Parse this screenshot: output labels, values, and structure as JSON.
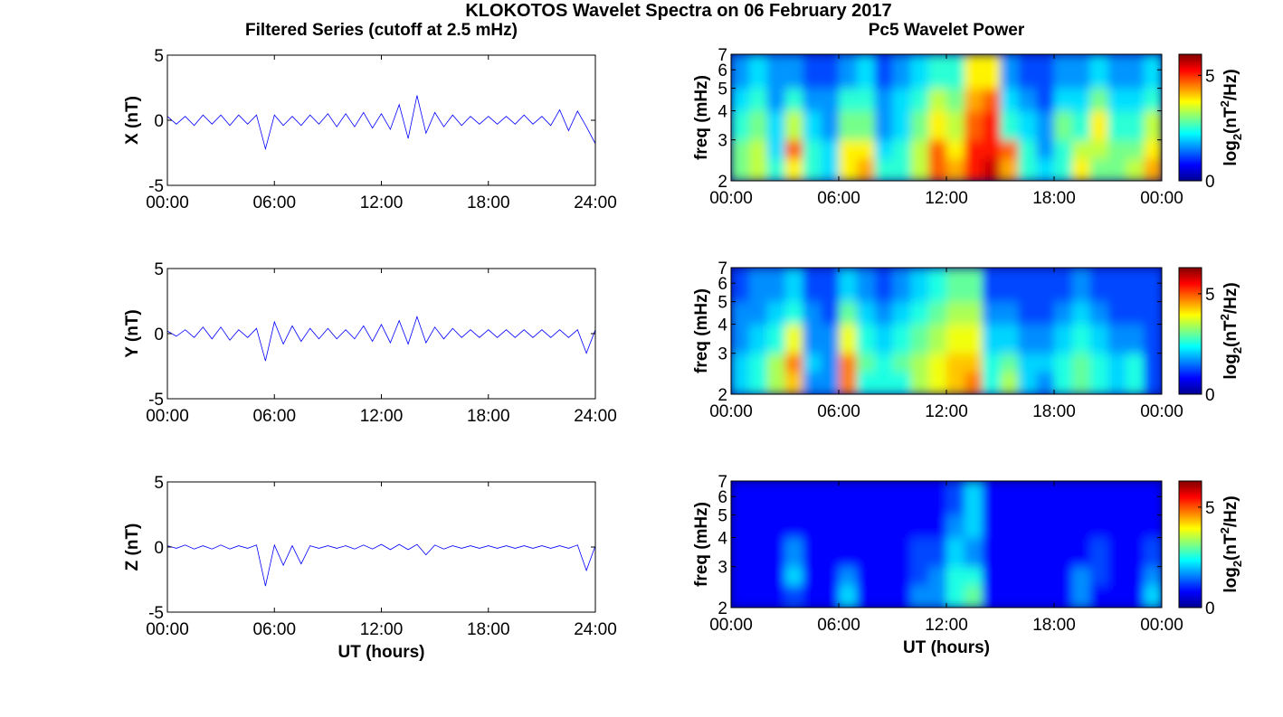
{
  "title": "KLOKOTOS Wavelet Spectra on 06 February 2017",
  "chart_data": [
    {
      "type": "line",
      "title": "Filtered Series (cutoff at 2.5 mHz)",
      "ylabel": "X (nT)",
      "color": "#0000ff",
      "xlim": [
        0,
        24
      ],
      "xticks": [
        {
          "value": 0,
          "label": "00:00"
        },
        {
          "value": 6,
          "label": "06:00"
        },
        {
          "value": 12,
          "label": "12:00"
        },
        {
          "value": 18,
          "label": "18:00"
        },
        {
          "value": 24,
          "label": "24:00"
        }
      ],
      "ylim": [
        -5,
        5
      ],
      "yticks": [
        -5,
        0,
        5
      ],
      "x": [
        0,
        0.5,
        1,
        1.5,
        2,
        2.5,
        3,
        3.5,
        4,
        4.5,
        5,
        5.5,
        6,
        6.5,
        7,
        7.5,
        8,
        8.5,
        9,
        9.5,
        10,
        10.5,
        11,
        11.5,
        12,
        12.5,
        13,
        13.5,
        14,
        14.5,
        15,
        15.5,
        16,
        16.5,
        17,
        17.5,
        18,
        18.5,
        19,
        19.5,
        20,
        20.5,
        21,
        21.5,
        22,
        22.5,
        23,
        23.5,
        24
      ],
      "values": [
        0.3,
        -0.3,
        0.3,
        -0.4,
        0.4,
        -0.3,
        0.4,
        -0.4,
        0.4,
        -0.3,
        0.4,
        -2.2,
        0.4,
        -0.4,
        0.3,
        -0.4,
        0.4,
        -0.3,
        0.5,
        -0.5,
        0.5,
        -0.5,
        0.6,
        -0.6,
        0.5,
        -0.7,
        1.2,
        -1.4,
        1.9,
        -1.0,
        0.6,
        -0.5,
        0.4,
        -0.4,
        0.3,
        -0.3,
        0.3,
        -0.3,
        0.3,
        -0.3,
        0.4,
        -0.3,
        0.3,
        -0.4,
        0.8,
        -0.8,
        0.7,
        -0.5,
        -1.8
      ]
    },
    {
      "type": "heatmap",
      "title": "Pc5 Wavelet Power",
      "ylabel": "freq (mHz)",
      "yscale": "log",
      "colormap": "jet",
      "xlim": [
        0,
        24
      ],
      "xticks": [
        {
          "value": 0,
          "label": "00:00"
        },
        {
          "value": 6,
          "label": "06:00"
        },
        {
          "value": 12,
          "label": "12:00"
        },
        {
          "value": 18,
          "label": "18:00"
        },
        {
          "value": 24,
          "label": "00:00"
        }
      ],
      "ylim": [
        2,
        7
      ],
      "yticks": [
        2,
        3,
        4,
        5,
        6,
        7
      ],
      "xbins": [
        0,
        1,
        2,
        3,
        4,
        5,
        6,
        7,
        8,
        9,
        10,
        11,
        12,
        13,
        14,
        15,
        16,
        17,
        18,
        19,
        20,
        21,
        22,
        23,
        24
      ],
      "ybins": [
        2,
        2.5,
        3,
        4,
        5,
        7
      ],
      "z": [
        [
          2.5,
          3,
          2,
          3.5,
          2,
          1.5,
          3.5,
          4,
          2,
          2,
          3,
          4.5,
          4,
          5,
          5.5,
          4,
          2,
          1.5,
          2,
          3.5,
          2.5,
          2.5,
          3,
          4
        ],
        [
          2.5,
          3,
          1.5,
          4.5,
          2,
          1.5,
          3.5,
          3.5,
          1.5,
          2,
          3,
          4.5,
          3.5,
          5,
          5,
          4.5,
          2,
          1,
          2,
          3,
          3,
          2.5,
          2.5,
          3.5
        ],
        [
          2,
          2.5,
          1.5,
          3,
          1.5,
          1,
          2.5,
          2.5,
          1,
          1.5,
          2.5,
          3.5,
          3,
          4.5,
          5,
          2,
          1.5,
          1,
          2.5,
          2,
          3.5,
          2,
          2,
          3
        ],
        [
          1.5,
          2,
          1,
          2,
          1,
          1,
          2,
          2,
          1,
          1.5,
          2,
          3,
          2.5,
          4,
          4.5,
          1.5,
          1,
          0.5,
          1.5,
          1.5,
          2.5,
          1.5,
          1.5,
          2
        ],
        [
          1,
          1.5,
          1,
          1,
          0.5,
          0.5,
          1,
          1.5,
          0.5,
          1,
          1.5,
          2,
          2,
          3.5,
          3.5,
          1,
          0.5,
          0.5,
          1,
          1,
          1.5,
          1,
          1,
          1.5
        ]
      ],
      "zlim": [
        0,
        6
      ],
      "zticks": [
        0,
        5
      ],
      "colorbar_label": [
        "log",
        "2",
        "(nT",
        "2",
        "/Hz)"
      ]
    },
    {
      "type": "line",
      "ylabel": "Y (nT)",
      "color": "#0000ff",
      "xlim": [
        0,
        24
      ],
      "xticks": [
        {
          "value": 0,
          "label": "00:00"
        },
        {
          "value": 6,
          "label": "06:00"
        },
        {
          "value": 12,
          "label": "12:00"
        },
        {
          "value": 18,
          "label": "18:00"
        },
        {
          "value": 24,
          "label": "24:00"
        }
      ],
      "ylim": [
        -5,
        5
      ],
      "yticks": [
        -5,
        0,
        5
      ],
      "x": [
        0,
        0.5,
        1,
        1.5,
        2,
        2.5,
        3,
        3.5,
        4,
        4.5,
        5,
        5.5,
        6,
        6.5,
        7,
        7.5,
        8,
        8.5,
        9,
        9.5,
        10,
        10.5,
        11,
        11.5,
        12,
        12.5,
        13,
        13.5,
        14,
        14.5,
        15,
        15.5,
        16,
        16.5,
        17,
        17.5,
        18,
        18.5,
        19,
        19.5,
        20,
        20.5,
        21,
        21.5,
        22,
        22.5,
        23,
        23.5,
        24
      ],
      "values": [
        0.2,
        -0.2,
        0.3,
        -0.3,
        0.5,
        -0.4,
        0.5,
        -0.5,
        0.3,
        -0.3,
        0.4,
        -2.1,
        0.9,
        -0.8,
        0.6,
        -0.6,
        0.4,
        -0.4,
        0.4,
        -0.4,
        0.3,
        -0.4,
        0.6,
        -0.6,
        0.7,
        -0.7,
        1.0,
        -0.8,
        1.3,
        -0.7,
        0.5,
        -0.4,
        0.4,
        -0.3,
        0.3,
        -0.3,
        0.3,
        -0.3,
        0.3,
        -0.3,
        0.3,
        -0.3,
        0.3,
        -0.3,
        0.3,
        -0.3,
        0.3,
        -1.5,
        0.3
      ]
    },
    {
      "type": "heatmap",
      "ylabel": "freq (mHz)",
      "yscale": "log",
      "colormap": "jet",
      "xlim": [
        0,
        24
      ],
      "xticks": [
        {
          "value": 0,
          "label": "00:00"
        },
        {
          "value": 6,
          "label": "06:00"
        },
        {
          "value": 12,
          "label": "12:00"
        },
        {
          "value": 18,
          "label": "18:00"
        },
        {
          "value": 24,
          "label": "00:00"
        }
      ],
      "ylim": [
        2,
        7
      ],
      "yticks": [
        2,
        3,
        4,
        5,
        6,
        7
      ],
      "xbins": [
        0,
        1,
        2,
        3,
        4,
        5,
        6,
        7,
        8,
        9,
        10,
        11,
        12,
        13,
        14,
        15,
        16,
        17,
        18,
        19,
        20,
        21,
        22,
        23,
        24
      ],
      "ybins": [
        2,
        2.5,
        3,
        4,
        5,
        7
      ],
      "z": [
        [
          1.5,
          2,
          3,
          4,
          1,
          1,
          4.5,
          2,
          2,
          2,
          3,
          3.5,
          4,
          4.5,
          2,
          3,
          1.5,
          1,
          2,
          2.5,
          2,
          1.5,
          2,
          0.5
        ],
        [
          1.5,
          2,
          3,
          4.5,
          1.5,
          1,
          4.5,
          2.5,
          2,
          2.5,
          3,
          3.5,
          4,
          4,
          2,
          2.5,
          1.5,
          1.5,
          2,
          2.5,
          2,
          1.5,
          2,
          0.5
        ],
        [
          1,
          1.5,
          2,
          3.5,
          1,
          1,
          3.5,
          2,
          1.5,
          2,
          2.5,
          3,
          3.5,
          3.5,
          1.5,
          1.5,
          1,
          1,
          1.5,
          2,
          1.5,
          1,
          1,
          0.5
        ],
        [
          1,
          1,
          1.5,
          2,
          1,
          0.5,
          2.5,
          1.5,
          1,
          1.5,
          2,
          2.5,
          3,
          3,
          1,
          1,
          0.5,
          0.5,
          1,
          1.5,
          1,
          0.5,
          0.5,
          0.5
        ],
        [
          0.5,
          1,
          1,
          1.5,
          0.5,
          0.5,
          1.5,
          1,
          0.5,
          1,
          1.5,
          2,
          2.5,
          2.5,
          0.5,
          0.5,
          0.5,
          0.5,
          0.5,
          1,
          0.5,
          0.5,
          0.5,
          0.5
        ]
      ],
      "zlim": [
        0,
        6.3
      ],
      "zticks": [
        0,
        5
      ],
      "colorbar_label": [
        "log",
        "2",
        "(nT",
        "2",
        "/Hz)"
      ]
    },
    {
      "type": "line",
      "ylabel": "Z (nT)",
      "xlabel": "UT (hours)",
      "color": "#0000ff",
      "xlim": [
        0,
        24
      ],
      "xticks": [
        {
          "value": 0,
          "label": "00:00"
        },
        {
          "value": 6,
          "label": "06:00"
        },
        {
          "value": 12,
          "label": "12:00"
        },
        {
          "value": 18,
          "label": "18:00"
        },
        {
          "value": 24,
          "label": "24:00"
        }
      ],
      "ylim": [
        -5,
        5
      ],
      "yticks": [
        -5,
        0,
        5
      ],
      "x": [
        0,
        0.5,
        1,
        1.5,
        2,
        2.5,
        3,
        3.5,
        4,
        4.5,
        5,
        5.5,
        6,
        6.5,
        7,
        7.5,
        8,
        8.5,
        9,
        9.5,
        10,
        10.5,
        11,
        11.5,
        12,
        12.5,
        13,
        13.5,
        14,
        14.5,
        15,
        15.5,
        16,
        16.5,
        17,
        17.5,
        18,
        18.5,
        19,
        19.5,
        20,
        20.5,
        21,
        21.5,
        22,
        22.5,
        23,
        23.5,
        24
      ],
      "values": [
        0.1,
        -0.1,
        0.15,
        -0.15,
        0.1,
        -0.15,
        0.15,
        -0.15,
        0.1,
        -0.1,
        0.15,
        -3.0,
        0.15,
        -1.4,
        0.1,
        -1.3,
        0.1,
        -0.1,
        0.1,
        -0.1,
        0.1,
        -0.15,
        0.15,
        -0.15,
        0.2,
        -0.2,
        0.2,
        -0.2,
        0.2,
        -0.6,
        0.15,
        -0.15,
        0.1,
        -0.1,
        0.1,
        -0.1,
        0.1,
        -0.1,
        0.1,
        -0.1,
        0.1,
        -0.1,
        0.1,
        -0.1,
        0.1,
        -0.1,
        0.15,
        -1.8,
        0.1
      ]
    },
    {
      "type": "heatmap",
      "ylabel": "freq (mHz)",
      "xlabel": "UT (hours)",
      "yscale": "log",
      "colormap": "jet",
      "xlim": [
        0,
        24
      ],
      "xticks": [
        {
          "value": 0,
          "label": "00:00"
        },
        {
          "value": 6,
          "label": "06:00"
        },
        {
          "value": 12,
          "label": "12:00"
        },
        {
          "value": 18,
          "label": "18:00"
        },
        {
          "value": 24,
          "label": "00:00"
        }
      ],
      "ylim": [
        2,
        7
      ],
      "yticks": [
        2,
        3,
        4,
        5,
        6,
        7
      ],
      "xbins": [
        0,
        1,
        2,
        3,
        4,
        5,
        6,
        7,
        8,
        9,
        10,
        11,
        12,
        13,
        14,
        15,
        16,
        17,
        18,
        19,
        20,
        21,
        22,
        23,
        24
      ],
      "ybins": [
        2,
        2.5,
        3,
        4,
        5,
        7
      ],
      "z": [
        [
          0,
          0,
          0,
          0.5,
          0,
          0,
          1.5,
          0,
          0,
          0,
          1,
          1,
          2,
          2.5,
          0,
          0,
          0,
          0,
          0,
          1,
          0,
          0,
          0,
          1.5
        ],
        [
          0,
          0,
          0,
          1.5,
          0,
          0,
          1,
          0,
          0,
          0,
          0.5,
          1,
          2,
          2,
          0,
          0,
          0,
          0,
          0,
          1,
          0.5,
          0,
          0,
          1
        ],
        [
          0,
          0,
          0,
          1,
          0,
          0,
          0,
          0,
          0,
          0,
          0.5,
          0.5,
          1.5,
          1,
          0,
          0,
          0,
          0,
          0,
          0,
          0.5,
          0,
          0,
          0.5
        ],
        [
          0,
          0,
          0,
          0,
          0,
          0,
          0,
          0,
          0,
          0,
          0,
          0,
          1,
          1.5,
          0,
          0,
          0,
          0,
          0,
          0,
          0,
          0,
          0,
          0
        ],
        [
          0,
          0,
          0,
          0,
          0,
          0,
          0,
          0,
          0,
          0,
          0,
          0,
          0.5,
          1.5,
          0,
          0,
          0,
          0,
          0,
          0,
          0,
          0,
          0,
          0
        ]
      ],
      "zlim": [
        0,
        6.3
      ],
      "zticks": [
        0,
        5
      ],
      "colorbar_label": [
        "log",
        "2",
        "(nT",
        "2",
        "/Hz)"
      ]
    }
  ]
}
